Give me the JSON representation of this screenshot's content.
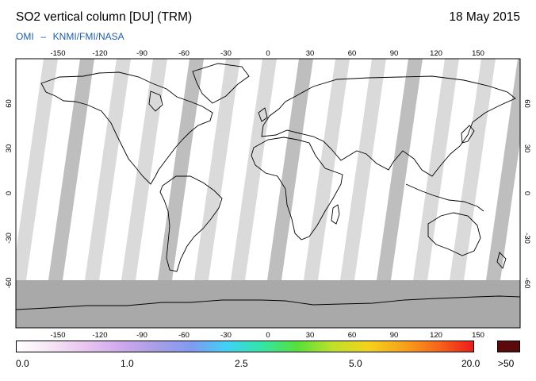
{
  "header": {
    "title": "SO2 vertical column [DU] (TRM)",
    "date": "18 May 2015",
    "credit_left": "OMI",
    "credit_sep": "–",
    "credit_right": "KNMI/FMI/NASA"
  },
  "map": {
    "lon_ticks": [
      "-150",
      "-120",
      "-90",
      "-60",
      "-30",
      "0",
      "30",
      "60",
      "90",
      "120",
      "150"
    ],
    "lat_ticks": [
      "60",
      "30",
      "0",
      "-30",
      "-60"
    ],
    "colors": {
      "ocean_background": "#ffffff",
      "no_data_gray": "#a9a9a9",
      "swath_light": "#d3d3d3",
      "swath_dark": "#b3b3b3",
      "coastline": "#000000"
    }
  },
  "colorbar": {
    "labels": [
      "0.0",
      "1.0",
      "2.5",
      "5.0",
      "20.0"
    ],
    "overflow_label": ">50",
    "gradient": [
      "#ffffff",
      "#f6e4f6",
      "#e8c4ef",
      "#cfa8ec",
      "#a89ee6",
      "#7f9bf0",
      "#3fd2f5",
      "#33e5a6",
      "#57e03a",
      "#bfe02a",
      "#f3d21c",
      "#f6a31a",
      "#f5661a",
      "#ee1a1a"
    ],
    "overflow_color": "#5a0a0a"
  }
}
